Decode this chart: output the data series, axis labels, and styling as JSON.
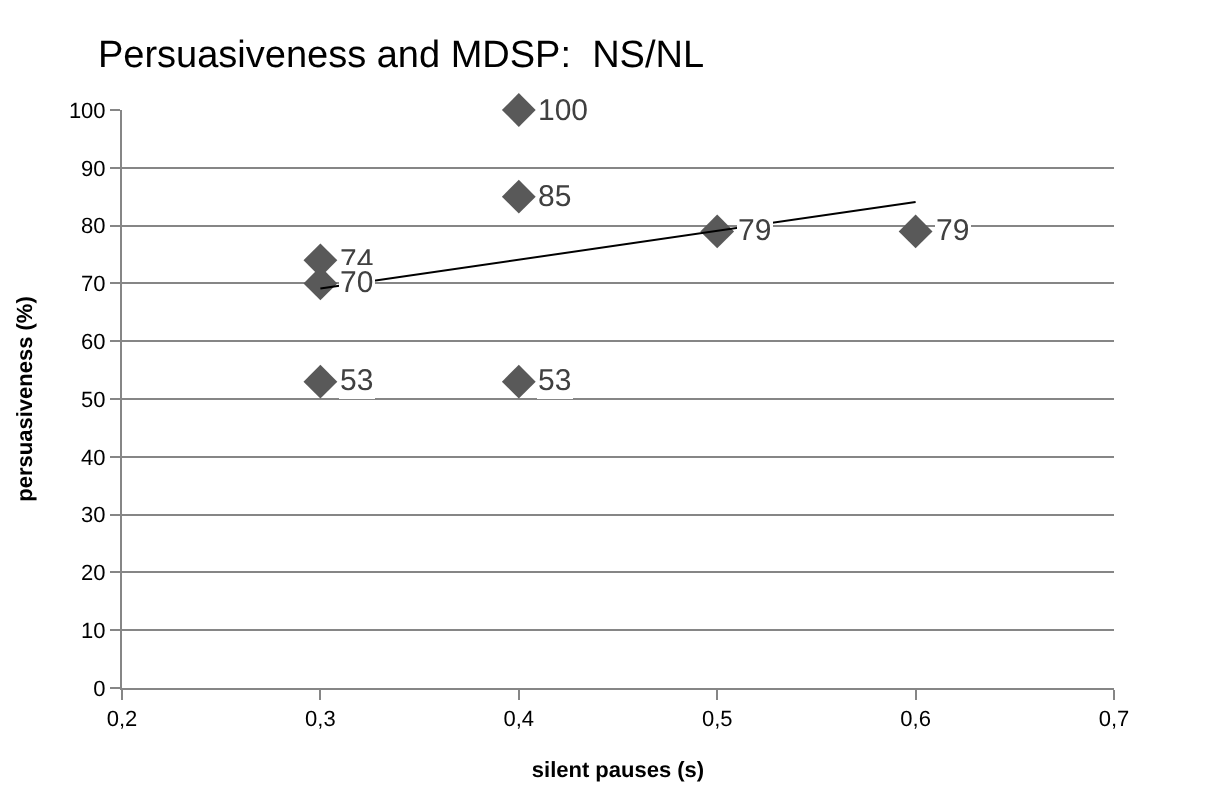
{
  "chart_data": {
    "type": "scatter",
    "title": "Persuasiveness and MDSP:  NS/NL",
    "xlabel": "silent pauses (s)",
    "ylabel": "persuasiveness (%)",
    "xlim": [
      0.2,
      0.7
    ],
    "xticks": [
      {
        "value": 0.2,
        "label": "0,2"
      },
      {
        "value": 0.3,
        "label": "0,3"
      },
      {
        "value": 0.4,
        "label": "0,4"
      },
      {
        "value": 0.5,
        "label": "0,5"
      },
      {
        "value": 0.6,
        "label": "0,6"
      },
      {
        "value": 0.7,
        "label": "0,7"
      }
    ],
    "ylim": [
      0,
      100
    ],
    "yticks": [
      0,
      10,
      20,
      30,
      40,
      50,
      60,
      70,
      80,
      90,
      100
    ],
    "grid": "y",
    "marker": "diamond",
    "series": [
      {
        "color": "#595959",
        "x": [
          0.3,
          0.3,
          0.3,
          0.4,
          0.4,
          0.4,
          0.5,
          0.6
        ],
        "values": [
          74,
          70,
          53,
          100,
          85,
          53,
          79,
          79
        ],
        "value_labels": [
          "74",
          "70",
          "53",
          "100",
          "85",
          "53",
          "79",
          "79"
        ]
      },
      {
        "type": "line",
        "color": "#000000",
        "x": [
          0.3,
          0.6
        ],
        "values": [
          69.1,
          84.1
        ],
        "marker": "none",
        "line_style": "solid"
      }
    ]
  }
}
